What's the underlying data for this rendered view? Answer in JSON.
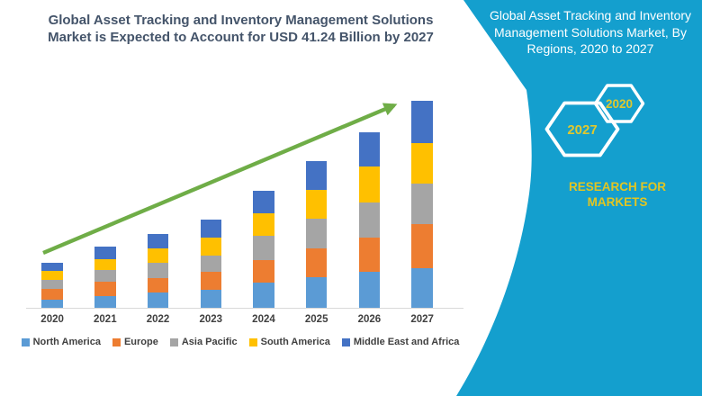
{
  "chart_data": {
    "type": "bar",
    "stacked": true,
    "title": "Global Asset Tracking and Inventory Management Solutions Market is Expected to Account for USD 41.24 Billion by 2027",
    "unit": "USD Billion",
    "xlabel": "",
    "ylabel": "",
    "ylim": [
      0,
      45
    ],
    "grid": false,
    "legend_position": "bottom",
    "trend_arrow": true,
    "categories": [
      "2020",
      "2021",
      "2022",
      "2023",
      "2024",
      "2025",
      "2026",
      "2027"
    ],
    "series": [
      {
        "name": "North America",
        "color": "#5B9BD5",
        "values": [
          1.7,
          2.4,
          3.0,
          3.6,
          5.1,
          6.1,
          7.2,
          7.9
        ]
      },
      {
        "name": "Europe",
        "color": "#ED7D31",
        "values": [
          2.0,
          2.8,
          3.0,
          3.6,
          4.5,
          5.7,
          6.9,
          8.8
        ]
      },
      {
        "name": "Asia Pacific",
        "color": "#A5A5A5",
        "values": [
          1.8,
          2.4,
          3.0,
          3.3,
          4.7,
          6.0,
          6.9,
          8.2
        ]
      },
      {
        "name": "South America",
        "color": "#FFC000",
        "values": [
          1.8,
          2.2,
          2.8,
          3.6,
          4.6,
          5.7,
          7.2,
          8.1
        ]
      },
      {
        "name": "Middle East and Africa",
        "color": "#4472C4",
        "values": [
          1.7,
          2.5,
          3.0,
          3.6,
          4.4,
          5.9,
          6.9,
          8.3
        ]
      }
    ],
    "totals": [
      9.0,
      12.3,
      14.8,
      17.7,
      23.3,
      29.4,
      35.1,
      41.3
    ]
  },
  "side_panel": {
    "title": "Global Asset Tracking and Inventory Management Solutions Market, By Regions, 2020 to 2027",
    "hexagons": [
      {
        "label": "2027"
      },
      {
        "label": "2020"
      }
    ],
    "brand": "RESEARCH FOR MARKETS"
  },
  "colors": {
    "panel_teal": "#149FCE",
    "arrow_green": "#6FAD47",
    "title_navy": "#44546A",
    "hex_year_yellow": "#DFC82F",
    "brand_yellow": "#E2C522",
    "axis_line_gray": "#D9D9D9",
    "tick_label_gray": "#404040"
  }
}
